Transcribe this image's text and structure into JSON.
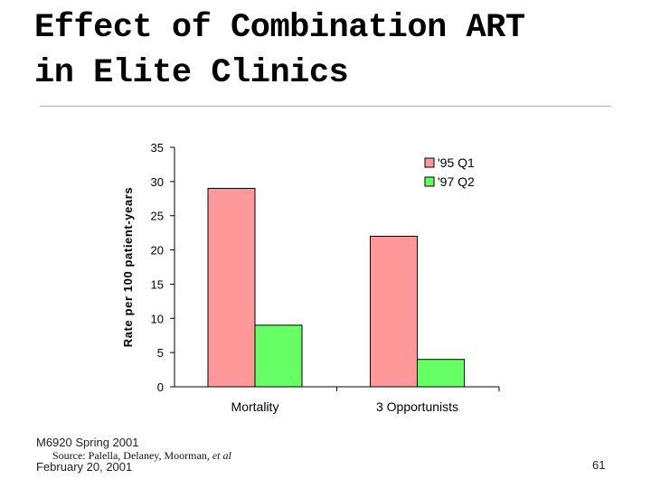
{
  "slide": {
    "title_line1": "Effect of Combination ART",
    "title_line2": "in Elite Clinics",
    "footer_course": "M6920 Spring 2001",
    "footer_source": "Source:  Palella, Delaney, Moorman,",
    "footer_source_etal": "et al",
    "footer_date": "February 20, 2001",
    "slide_number": "61"
  },
  "colors": {
    "series1": "#ff9999",
    "series2": "#66ff66",
    "rule": "#99cc66"
  },
  "chart_data": {
    "type": "bar",
    "title": "",
    "xlabel": "",
    "ylabel": "Rate per 100 patient-years",
    "categories": [
      "Mortality",
      "3 Opportunists"
    ],
    "series": [
      {
        "name": "'95 Q1",
        "values": [
          29,
          22
        ]
      },
      {
        "name": "'97 Q2",
        "values": [
          9,
          4
        ]
      }
    ],
    "ylim": [
      0,
      35
    ],
    "yticks": [
      0,
      5,
      10,
      15,
      20,
      25,
      30,
      35
    ],
    "grid": false,
    "legend": "top-right"
  }
}
